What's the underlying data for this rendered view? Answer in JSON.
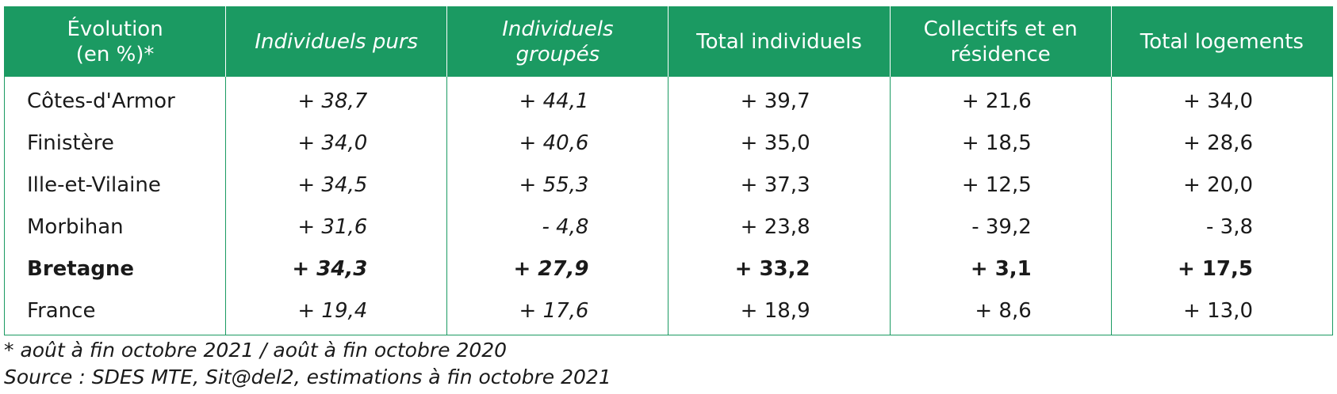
{
  "table": {
    "header": [
      "Évolution\n(en %)*",
      "Individuels purs",
      "Individuels\ngroupés",
      "Total individuels",
      "Collectifs et en\nrésidence",
      "Total logements"
    ],
    "rows": [
      [
        "Côtes-d'Armor",
        "+ 38,7",
        "+ 44,1",
        "+ 39,7",
        "+ 21,6",
        "+ 34,0"
      ],
      [
        "Finistère",
        "+ 34,0",
        "+ 40,6",
        "+ 35,0",
        "+ 18,5",
        "+ 28,6"
      ],
      [
        "Ille-et-Vilaine",
        "+ 34,5",
        "+ 55,3",
        "+ 37,3",
        "+ 12,5",
        "+ 20,0"
      ],
      [
        "Morbihan",
        "+ 31,6",
        "- 4,8",
        "+ 23,8",
        "- 39,2",
        "- 3,8"
      ],
      [
        "Bretagne",
        "+ 34,3",
        "+ 27,9",
        "+ 33,2",
        "+ 3,1",
        "+ 17,5"
      ],
      [
        "France",
        "+ 19,4",
        "+ 17,6",
        "+ 18,9",
        "+ 8,6",
        "+ 13,0"
      ]
    ],
    "bold_row": 4,
    "italic_columns": [
      1,
      2
    ]
  },
  "notes": [
    "* août à fin octobre 2021 / août à fin octobre 2020",
    "Source : SDES MTE, Sit@del2, estimations à fin octobre 2021"
  ]
}
